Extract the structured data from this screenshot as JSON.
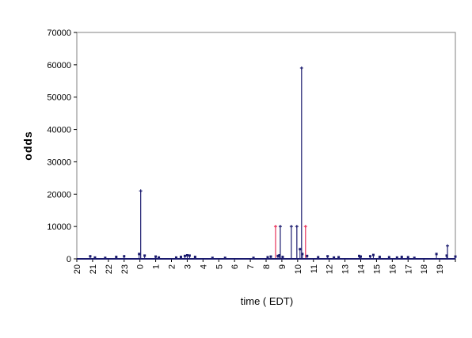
{
  "chart_data": {
    "type": "scatter",
    "xlabel": "time ( EDT)",
    "ylabel": "odds",
    "ylim": [
      0,
      70000
    ],
    "y_ticks": [
      "0",
      "10000",
      "20000",
      "30000",
      "40000",
      "50000",
      "60000",
      "70000"
    ],
    "x_ticks": [
      "20",
      "21",
      "22",
      "23",
      "0",
      "1",
      "2",
      "3",
      "4",
      "5",
      "6",
      "7",
      "8",
      "9",
      "10",
      "11",
      "12",
      "13",
      "14",
      "15",
      "16",
      "17",
      "18",
      "19"
    ],
    "grid": false,
    "legend": "none",
    "colors": {
      "primary": "#1a1a6e",
      "highlight": "#e8325a"
    },
    "series": [
      {
        "color": "primary",
        "style": "spikes",
        "points": [
          {
            "t": 4.05,
            "y": 21000
          },
          {
            "t": 12.9,
            "y": 10000
          },
          {
            "t": 13.6,
            "y": 10000
          },
          {
            "t": 13.95,
            "y": 10000
          },
          {
            "t": 14.25,
            "y": 59000
          },
          {
            "t": 23.5,
            "y": 4000
          }
        ]
      },
      {
        "color": "highlight",
        "style": "spikes",
        "points": [
          {
            "t": 12.6,
            "y": 10000
          },
          {
            "t": 14.5,
            "y": 10000
          }
        ]
      },
      {
        "color": "primary",
        "style": "markers",
        "points": [
          {
            "t": 0.85,
            "y": 800
          },
          {
            "t": 1.15,
            "y": 400
          },
          {
            "t": 1.8,
            "y": 300
          },
          {
            "t": 2.5,
            "y": 600
          },
          {
            "t": 3.0,
            "y": 800
          },
          {
            "t": 3.95,
            "y": 1500
          },
          {
            "t": 4.3,
            "y": 1000
          },
          {
            "t": 5.0,
            "y": 700
          },
          {
            "t": 5.2,
            "y": 400
          },
          {
            "t": 6.3,
            "y": 400
          },
          {
            "t": 6.6,
            "y": 600
          },
          {
            "t": 6.85,
            "y": 900
          },
          {
            "t": 7.0,
            "y": 1100
          },
          {
            "t": 7.15,
            "y": 1000
          },
          {
            "t": 7.5,
            "y": 600
          },
          {
            "t": 8.6,
            "y": 300
          },
          {
            "t": 9.4,
            "y": 300
          },
          {
            "t": 11.2,
            "y": 300
          },
          {
            "t": 12.1,
            "y": 500
          },
          {
            "t": 12.3,
            "y": 700
          },
          {
            "t": 12.75,
            "y": 900
          },
          {
            "t": 12.85,
            "y": 1100
          },
          {
            "t": 13.05,
            "y": 600
          },
          {
            "t": 14.15,
            "y": 3000
          },
          {
            "t": 14.3,
            "y": 1500
          },
          {
            "t": 14.6,
            "y": 900
          },
          {
            "t": 15.3,
            "y": 500
          },
          {
            "t": 15.9,
            "y": 800
          },
          {
            "t": 16.3,
            "y": 400
          },
          {
            "t": 16.6,
            "y": 500
          },
          {
            "t": 17.9,
            "y": 900
          },
          {
            "t": 18.0,
            "y": 700
          },
          {
            "t": 18.6,
            "y": 800
          },
          {
            "t": 18.8,
            "y": 1200
          },
          {
            "t": 19.2,
            "y": 600
          },
          {
            "t": 19.8,
            "y": 500
          },
          {
            "t": 20.3,
            "y": 400
          },
          {
            "t": 20.6,
            "y": 600
          },
          {
            "t": 21.0,
            "y": 500
          },
          {
            "t": 21.4,
            "y": 300
          },
          {
            "t": 22.8,
            "y": 1500
          },
          {
            "t": 23.45,
            "y": 1000
          },
          {
            "t": 24.0,
            "y": 700
          }
        ]
      }
    ]
  }
}
